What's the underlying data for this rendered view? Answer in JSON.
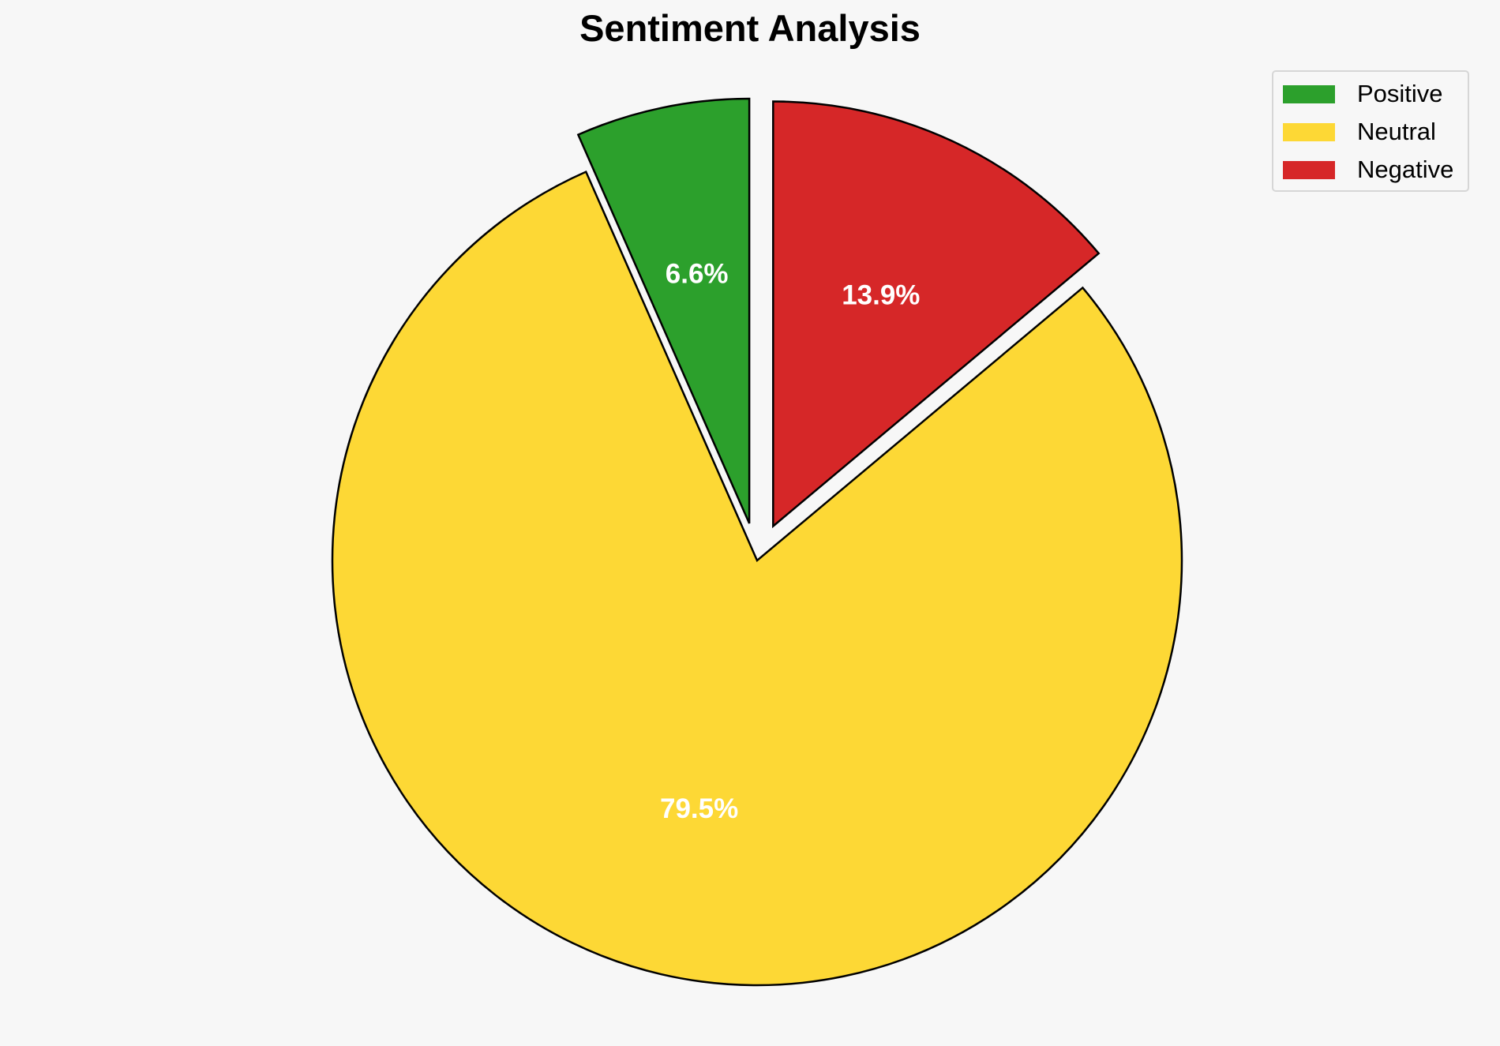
{
  "chart_data": {
    "type": "pie",
    "title": "Sentiment Analysis",
    "categories": [
      "Positive",
      "Neutral",
      "Negative"
    ],
    "values": [
      6.6,
      79.5,
      13.9
    ],
    "value_labels": [
      "6.6%",
      "79.5%",
      "13.9%"
    ],
    "colors": [
      "#2ca02c",
      "#fdd835",
      "#d62728"
    ],
    "exploded": [
      true,
      false,
      true
    ],
    "start_angle_deg": 90,
    "direction": "counterclockwise",
    "legend": {
      "placement": "top-right",
      "entries": [
        "Positive",
        "Neutral",
        "Negative"
      ]
    }
  }
}
